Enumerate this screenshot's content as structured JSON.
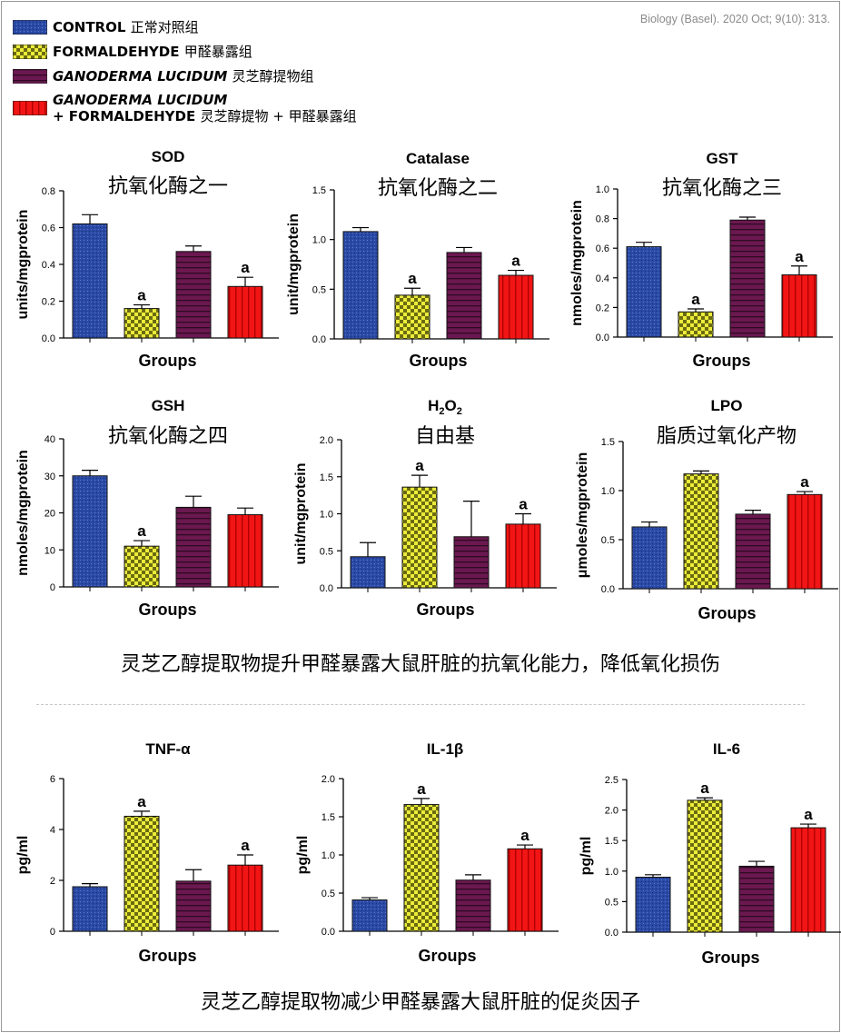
{
  "citation": "Biology (Basel). 2020 Oct; 9(10): 313.",
  "legend": [
    {
      "key": "control",
      "label": "CONTROL",
      "cn": "正常对照组",
      "color": "#2a4aa5",
      "pattern": "dots"
    },
    {
      "key": "formaldehyde",
      "label": "FORMALDEHYDE",
      "cn": "甲醛暴露组",
      "color": "#e6e635",
      "pattern": "checker"
    },
    {
      "key": "ganoderma",
      "label": "GANODERMA LUCIDUM",
      "cn": "灵芝醇提物组",
      "color": "#6b1850",
      "pattern": "hlines"
    },
    {
      "key": "combo",
      "label_line1": "GANODERMA LUCIDUM",
      "label_line2": "+ FORMALDEHYDE",
      "cn": "灵芝醇提物 + 甲醛暴露组",
      "color": "#f21515",
      "pattern": "vlines"
    }
  ],
  "captions": {
    "antioxidant": "灵芝乙醇提取物提升甲醛暴露大鼠肝脏的抗氧化能力，降低氧化损伤",
    "inflammation": "灵芝乙醇提取物减少甲醛暴露大鼠肝脏的促炎因子"
  },
  "chart_data": [
    {
      "type": "bar",
      "title": "SOD",
      "subtitle": "抗氧化酶之一",
      "xlabel": "Groups",
      "ylabel": "units/mgprotein",
      "ylim": [
        0,
        0.8
      ],
      "yticks": [
        "0.0",
        "0.2",
        "0.4",
        "0.6",
        "0.8"
      ],
      "values": [
        0.62,
        0.16,
        0.47,
        0.28
      ],
      "errors": [
        0.05,
        0.02,
        0.03,
        0.05
      ],
      "sig": [
        "",
        "a",
        "",
        "a"
      ]
    },
    {
      "type": "bar",
      "title": "Catalase",
      "subtitle": "抗氧化酶之二",
      "xlabel": "Groups",
      "ylabel": "unit/mgprotein",
      "ylim": [
        0,
        1.5
      ],
      "yticks": [
        "0.0",
        "0.5",
        "1.0",
        "1.5"
      ],
      "values": [
        1.08,
        0.44,
        0.87,
        0.64
      ],
      "errors": [
        0.04,
        0.07,
        0.05,
        0.05
      ],
      "sig": [
        "",
        "a",
        "",
        "a"
      ]
    },
    {
      "type": "bar",
      "title": "GST",
      "subtitle": "抗氧化酶之三",
      "xlabel": "Groups",
      "ylabel": "nmoles/mgprotein",
      "ylim": [
        0,
        1.0
      ],
      "yticks": [
        "0.0",
        "0.2",
        "0.4",
        "0.6",
        "0.8",
        "1.0"
      ],
      "values": [
        0.61,
        0.17,
        0.79,
        0.42
      ],
      "errors": [
        0.03,
        0.02,
        0.02,
        0.06
      ],
      "sig": [
        "",
        "a",
        "",
        "a"
      ]
    },
    {
      "type": "bar",
      "title": "GSH",
      "subtitle": "抗氧化酶之四",
      "xlabel": "Groups",
      "ylabel": "nmoles/mgprotein",
      "ylim": [
        0,
        40
      ],
      "yticks": [
        "0",
        "10",
        "20",
        "30",
        "40"
      ],
      "values": [
        30,
        11,
        21.5,
        19.5
      ],
      "errors": [
        1.5,
        1.5,
        3.0,
        1.8
      ],
      "sig": [
        "",
        "a",
        "",
        ""
      ]
    },
    {
      "type": "bar",
      "title": "H2O2",
      "subtitle": "自由基",
      "xlabel": "Groups",
      "ylabel": "unit/mgprotein",
      "ylim": [
        0,
        2.0
      ],
      "yticks": [
        "0.0",
        "0.5",
        "1.0",
        "1.5",
        "2.0"
      ],
      "values": [
        0.42,
        1.36,
        0.69,
        0.86
      ],
      "errors": [
        0.19,
        0.16,
        0.48,
        0.14
      ],
      "sig": [
        "",
        "a",
        "",
        "a"
      ]
    },
    {
      "type": "bar",
      "title": "LPO",
      "subtitle": "脂质过氧化产物",
      "xlabel": "Groups",
      "ylabel": "μmoles/mgprotein",
      "ylim": [
        0,
        1.5
      ],
      "yticks": [
        "0.0",
        "0.5",
        "1.0",
        "1.5"
      ],
      "values": [
        0.63,
        1.17,
        0.76,
        0.96
      ],
      "errors": [
        0.05,
        0.03,
        0.04,
        0.03
      ],
      "sig": [
        "",
        "",
        "",
        "a"
      ]
    },
    {
      "type": "bar",
      "title": "TNF-α",
      "subtitle": "",
      "xlabel": "Groups",
      "ylabel": "pg/ml",
      "ylim": [
        0,
        6
      ],
      "yticks": [
        "0",
        "2",
        "4",
        "6"
      ],
      "values": [
        1.75,
        4.52,
        1.97,
        2.6
      ],
      "errors": [
        0.12,
        0.2,
        0.45,
        0.4
      ],
      "sig": [
        "",
        "a",
        "",
        "a"
      ]
    },
    {
      "type": "bar",
      "title": "IL-1β",
      "subtitle": "",
      "xlabel": "Groups",
      "ylabel": "pg/ml",
      "ylim": [
        0,
        2.0
      ],
      "yticks": [
        "0.0",
        "0.5",
        "1.0",
        "1.5",
        "2.0"
      ],
      "values": [
        0.41,
        1.66,
        0.67,
        1.08
      ],
      "errors": [
        0.03,
        0.08,
        0.07,
        0.05
      ],
      "sig": [
        "",
        "a",
        "",
        "a"
      ]
    },
    {
      "type": "bar",
      "title": "IL-6",
      "subtitle": "",
      "xlabel": "Groups",
      "ylabel": "pg/ml",
      "ylim": [
        0,
        2.5
      ],
      "yticks": [
        "0.0",
        "0.5",
        "1.0",
        "1.5",
        "2.0",
        "2.5"
      ],
      "values": [
        0.9,
        2.16,
        1.08,
        1.71
      ],
      "errors": [
        0.04,
        0.04,
        0.08,
        0.06
      ],
      "sig": [
        "",
        "a",
        "",
        "a"
      ]
    }
  ]
}
